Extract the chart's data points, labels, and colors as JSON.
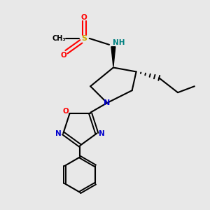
{
  "bg_color": "#e8e8e8",
  "figsize": [
    3.0,
    3.0
  ],
  "dpi": 100,
  "colors": {
    "S": "#ccaa00",
    "O": "#ff0000",
    "N": "#0000cc",
    "C": "#000000",
    "H": "#008080",
    "bond": "#000000"
  },
  "layout": {
    "xlim": [
      0,
      1
    ],
    "ylim": [
      0,
      1
    ]
  }
}
